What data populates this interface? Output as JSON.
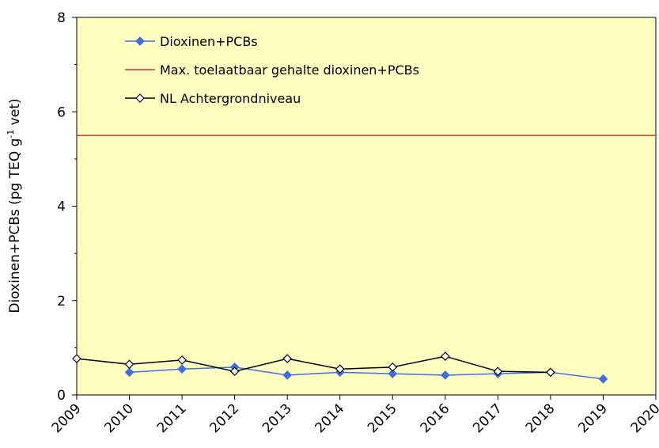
{
  "chart_data": {
    "type": "line",
    "ylabel": [
      "Dioxinen+PCBs  (pg TEQ g",
      "-1",
      " vet)"
    ],
    "x": [
      2009,
      2010,
      2011,
      2012,
      2013,
      2014,
      2015,
      2016,
      2017,
      2018,
      2019,
      2020
    ],
    "xlim": [
      2009,
      2020
    ],
    "xticks": [
      2009,
      2010,
      2011,
      2012,
      2013,
      2014,
      2015,
      2016,
      2017,
      2018,
      2019,
      2020
    ],
    "ylim": [
      0,
      8
    ],
    "yticks": [
      0,
      2,
      4,
      6,
      8
    ],
    "yminorticks": [
      1,
      3,
      5,
      7
    ],
    "background": "#ffffc0",
    "legend": "upper left",
    "series": [
      {
        "name": "Dioxinen+PCBs",
        "color": "#3c6ee8",
        "marker": "filled-diamond",
        "values": [
          null,
          0.48,
          0.55,
          0.59,
          0.42,
          0.48,
          0.45,
          0.42,
          0.45,
          0.48,
          0.34,
          null
        ]
      },
      {
        "name": "Max. toelaatbaar gehalte dioxinen+PCBs",
        "color": "#e83030",
        "marker": "none",
        "values": [
          5.5,
          5.5,
          5.5,
          5.5,
          5.5,
          5.5,
          5.5,
          5.5,
          5.5,
          5.5,
          5.5,
          5.5
        ]
      },
      {
        "name": "NL Achtergrondniveau",
        "color": "#000000",
        "marker": "open-diamond",
        "values": [
          0.77,
          0.65,
          0.74,
          0.5,
          0.77,
          0.55,
          0.59,
          0.82,
          0.5,
          0.48,
          null,
          null
        ]
      }
    ]
  }
}
